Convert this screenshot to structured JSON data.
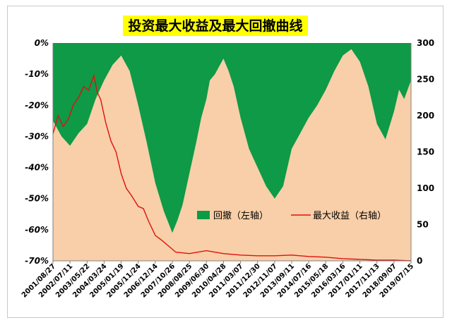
{
  "chart_data": {
    "type": "area",
    "title": "投资最大收益及最大回撤曲线",
    "colors": {
      "plot_background": "#f8cfa8",
      "drawdown_area": "#0e9a47",
      "max_return_line": "#e01010",
      "title_background": "#ffff00"
    },
    "x_tick_labels": [
      "2001/08/27",
      "2002/07/11",
      "2003/05/22",
      "2004/03/24",
      "2005/01/19",
      "2005/11/24",
      "2006/12/14",
      "2007/10/26",
      "2008/08/25",
      "2009/06/30",
      "2010/04/28",
      "2011/03/07",
      "2011/12/30",
      "2012/11/07",
      "2013/09/11",
      "2014/07/16",
      "2015/05/18",
      "2016/03/16",
      "2017/01/11",
      "2017/11/13",
      "2018/09/07",
      "2019/07/15"
    ],
    "y_left": {
      "ticks": [
        "0%",
        "-10%",
        "-20%",
        "-30%",
        "-40%",
        "-50%",
        "-60%",
        "-70%"
      ],
      "range": [
        -70,
        0
      ]
    },
    "y_right": {
      "ticks": [
        "300",
        "250",
        "200",
        "150",
        "100",
        "50",
        "0"
      ],
      "range": [
        0,
        300
      ]
    },
    "series": [
      {
        "name": "回撤（左轴）",
        "axis": "left",
        "style": "area",
        "x": [
          0,
          0.5,
          1,
          1.5,
          2,
          2.5,
          3,
          3.5,
          4,
          4.5,
          5,
          5.5,
          6,
          6.5,
          7,
          7.3,
          7.6,
          8,
          8.4,
          8.7,
          9,
          9.2,
          9.5,
          9.8,
          10,
          10.3,
          10.6,
          11,
          11.5,
          12,
          12.5,
          13,
          13.5,
          14,
          14.5,
          15,
          15.5,
          16,
          16.5,
          17,
          17.5,
          18,
          18.5,
          19,
          19.5,
          20,
          20.3,
          20.6,
          21
        ],
        "values": [
          -25,
          -30,
          -33,
          -29,
          -26,
          -18,
          -12,
          -7,
          -4,
          -9,
          -20,
          -32,
          -45,
          -54,
          -61,
          -57,
          -52,
          -42,
          -32,
          -24,
          -18,
          -12,
          -10,
          -7,
          -5,
          -9,
          -14,
          -24,
          -34,
          -40,
          -46,
          -50,
          -46,
          -34,
          -29,
          -24,
          -20,
          -15,
          -9,
          -4,
          -2,
          -6,
          -14,
          -26,
          -31,
          -22,
          -15,
          -18,
          -12
        ]
      },
      {
        "name": "最大收益（右轴）",
        "axis": "right",
        "style": "line",
        "x": [
          0,
          0.3,
          0.6,
          0.9,
          1.2,
          1.5,
          1.8,
          2.1,
          2.4,
          2.6,
          2.8,
          3.1,
          3.4,
          3.7,
          4,
          4.3,
          4.6,
          5,
          5.3,
          5.6,
          6,
          6.4,
          6.8,
          7.2,
          8,
          9,
          10,
          11,
          12,
          13,
          14,
          15,
          16,
          17,
          18,
          19,
          20,
          21
        ],
        "values": [
          175,
          200,
          185,
          195,
          215,
          225,
          240,
          235,
          255,
          232,
          222,
          190,
          165,
          150,
          120,
          100,
          90,
          75,
          72,
          55,
          35,
          28,
          20,
          12,
          10,
          14,
          10,
          8,
          7,
          7,
          8,
          6,
          5,
          3,
          2,
          1,
          1,
          0
        ]
      }
    ],
    "legend": {
      "position": "bottom-right",
      "entries": [
        "回撤（左轴）",
        "最大收益（右轴）"
      ]
    },
    "grid": false
  }
}
